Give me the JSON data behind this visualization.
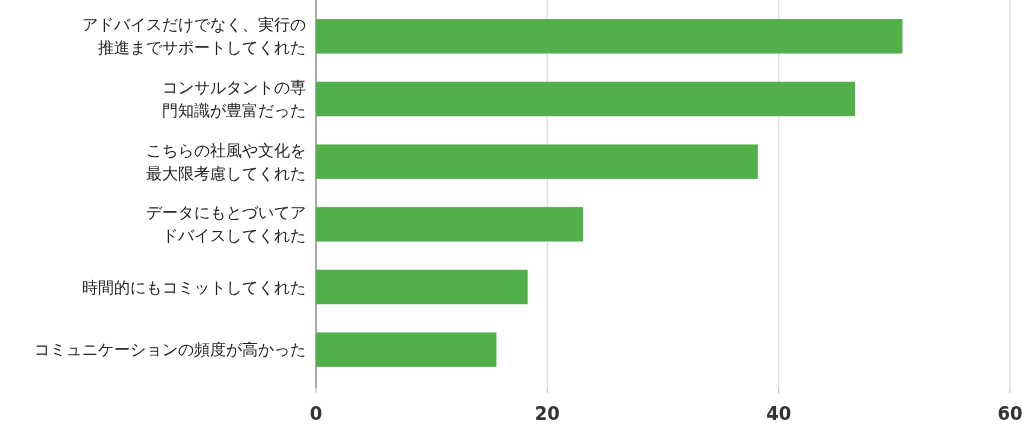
{
  "chart_data": {
    "type": "bar",
    "orientation": "horizontal",
    "categories": [
      "アドバイスだけでなく、実行の推進までサポートしてくれた",
      "コンサルタントの専門知識が豊富だった",
      "こちらの社風や文化を最大限考慮してくれた",
      "データにもとづいてアドバイスしてくれた",
      "時間的にもコミットしてくれた",
      "コミュニケーションの頻度が高かった"
    ],
    "values": [
      50.7,
      46.6,
      38.2,
      23.1,
      18.3,
      15.6
    ],
    "color": "#52b04a",
    "xlim": [
      0,
      60
    ],
    "xticks": [
      0,
      20,
      40,
      60
    ],
    "grid": "x"
  }
}
